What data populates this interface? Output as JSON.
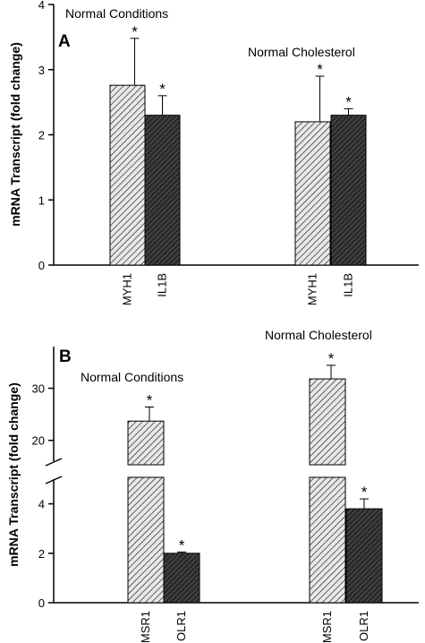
{
  "colors": {
    "background": "#ffffff",
    "ink": "#000000",
    "light_fill": "#e8e8e8",
    "dark_fill": "#2a2a2a"
  },
  "chart_data": [
    {
      "type": "bar",
      "panel": "A",
      "ylabel": "mRNA Transcript (fold change)",
      "ylim": [
        0,
        4
      ],
      "yticks": [
        "0",
        "1",
        "2",
        "3",
        "4"
      ],
      "grid": false,
      "categories": [
        "MYH1",
        "IL1B",
        "MYH1",
        "IL1B"
      ],
      "groups": [
        "Normal Conditions",
        "Normal Cholesterol"
      ],
      "values": [
        2.76,
        2.3,
        2.2,
        2.3
      ],
      "errors": [
        0.72,
        0.3,
        0.7,
        0.1
      ],
      "significance": [
        "*",
        "*",
        "*",
        "*"
      ],
      "fills": [
        "hatch-light",
        "hatch-dark",
        "hatch-light",
        "hatch-dark"
      ]
    },
    {
      "type": "bar",
      "panel": "B",
      "ylabel": "mRNA Transcript (fold change)",
      "ylim_lower": [
        0,
        5
      ],
      "ylim_upper": [
        16,
        38
      ],
      "yticks_lower": [
        "0",
        "2",
        "4"
      ],
      "yticks_upper": [
        "20",
        "30"
      ],
      "axis_break": true,
      "grid": false,
      "categories": [
        "MSR1",
        "OLR1",
        "MSR1",
        "OLR1"
      ],
      "groups": [
        "Normal Conditions",
        "Normal Cholesterol"
      ],
      "values": [
        23.7,
        2.0,
        31.8,
        3.8
      ],
      "errors": [
        2.7,
        0.05,
        2.6,
        0.4
      ],
      "significance": [
        "*",
        "*",
        "*",
        "*"
      ],
      "fills": [
        "hatch-light",
        "hatch-dark",
        "hatch-light",
        "hatch-dark"
      ]
    }
  ]
}
